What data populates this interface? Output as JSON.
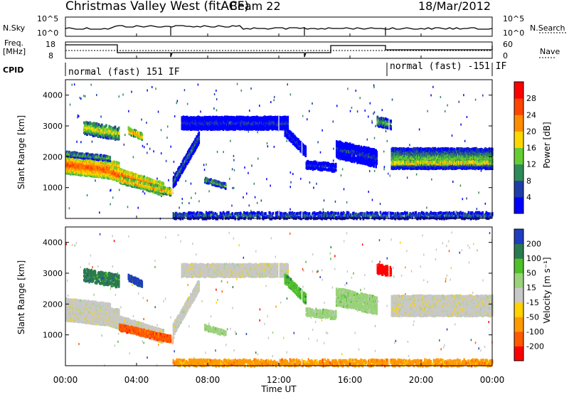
{
  "header": {
    "radar": "Christmas Valley West (fitACF)",
    "beam": "Beam 22",
    "date": "18/Mar/2012"
  },
  "sky_panel": {
    "left_label": "N.Sky",
    "right_label": "N.Search",
    "left_ticks": [
      "10^5",
      "10^0"
    ],
    "right_ticks": [
      "10^5",
      "10^0"
    ]
  },
  "freq_panel": {
    "left_label_1": "Freq.",
    "left_label_2": "[MHz]",
    "right_label": "Nave",
    "left_ticks": [
      "18",
      "8"
    ],
    "right_ticks": [
      "60",
      "0"
    ]
  },
  "cpid_panel": {
    "label": "CPID",
    "segments": [
      "normal (fast) 151 IF",
      "normal (fast) -151 IF"
    ]
  },
  "chart_data": [
    {
      "type": "heatmap",
      "name": "power",
      "ylabel": "Slant Range [km]",
      "xlabel": "",
      "x_ticks": [
        "00:00",
        "04:00",
        "08:00",
        "12:00",
        "16:00",
        "20:00",
        "00:00"
      ],
      "y_ticks": [
        1000,
        2000,
        3000,
        4000
      ],
      "ylim": [
        0,
        4500
      ],
      "xlim_hours": [
        0,
        24
      ],
      "colorbar": {
        "label": "Power [dB]",
        "ticks": [
          "4",
          "8",
          "12",
          "16",
          "20",
          "24",
          "28"
        ],
        "colors": [
          "#0000ff",
          "#1f3da8",
          "#2e8b57",
          "#66cc33",
          "#ffd700",
          "#ff8c00",
          "#ff4500",
          "#ff0000"
        ]
      }
    },
    {
      "type": "heatmap",
      "name": "velocity",
      "ylabel": "Slant Range [km]",
      "xlabel": "Time UT",
      "x_ticks": [
        "00:00",
        "04:00",
        "08:00",
        "12:00",
        "16:00",
        "20:00",
        "00:00"
      ],
      "y_ticks": [
        1000,
        2000,
        3000,
        4000
      ],
      "ylim": [
        0,
        4500
      ],
      "xlim_hours": [
        0,
        24
      ],
      "colorbar": {
        "label": "Velocity [m s⁻¹]",
        "ticks": [
          "200",
          "100",
          "50",
          "15",
          "-15",
          "-50",
          "-100",
          "-200"
        ],
        "colors": [
          "#1f3dbf",
          "#2a7a4f",
          "#4fbf2a",
          "#9ad27a",
          "#c8c8c8",
          "#ffd200",
          "#ff9a00",
          "#ff5a00",
          "#ff0000"
        ]
      }
    }
  ]
}
